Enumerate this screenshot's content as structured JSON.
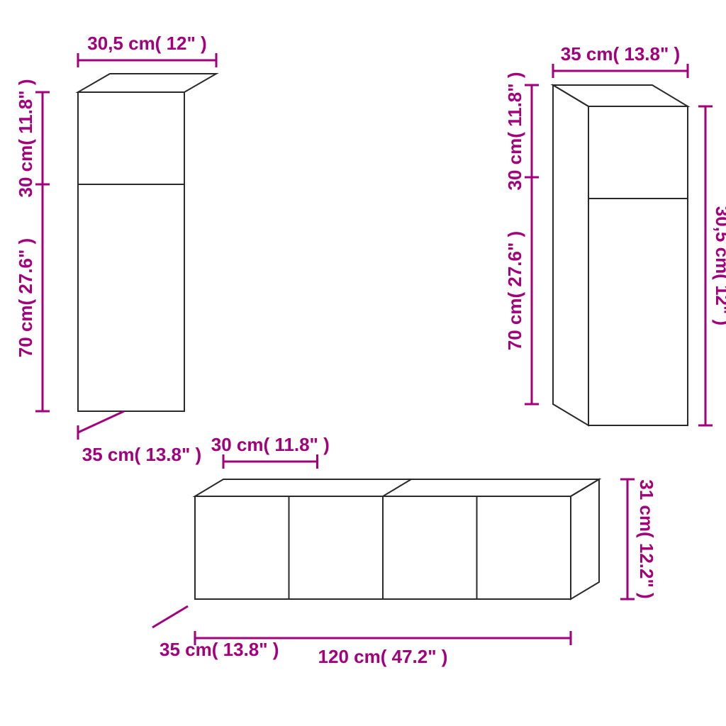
{
  "colors": {
    "accent": "#a3007b",
    "stroke": "#2a2a2a",
    "background": "#ffffff"
  },
  "dimensions": {
    "left_cabinet": {
      "width": "30,5 cm( 12\" )",
      "height_top": "30 cm( 11.8\" )",
      "height_bottom": "70 cm( 27.6\" )",
      "depth": "35 cm( 13.8\" )"
    },
    "right_cabinet": {
      "width": "35 cm( 13.8\" )",
      "height_top": "30 cm( 11.8\" )",
      "height_bottom": "70 cm( 27.6\" )",
      "depth": "30,5 cm( 12\" )"
    },
    "bottom_cabinet": {
      "top_width": "30 cm( 11.8\" )",
      "full_width": "120 cm( 47.2\" )",
      "height": "31 cm( 12.2\" )",
      "depth": "35 cm( 13.8\" )"
    }
  }
}
